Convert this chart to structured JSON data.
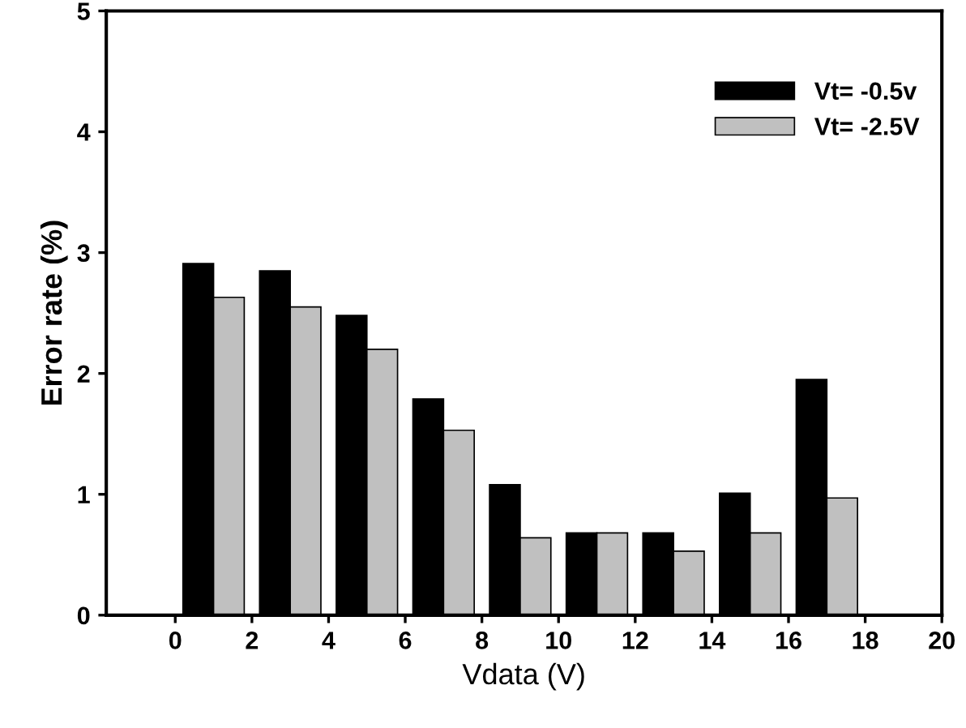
{
  "chart_data": {
    "type": "bar",
    "xlabel": "Vdata (V)",
    "ylabel": "Error rate (%)",
    "xlim": [
      -1.8,
      20
    ],
    "xticks": [
      0,
      2,
      4,
      6,
      8,
      10,
      12,
      14,
      16,
      18,
      20
    ],
    "ylim": [
      0,
      5
    ],
    "yticks": [
      0,
      1,
      2,
      3,
      4,
      5
    ],
    "series": [
      {
        "name": "Vt= -0.5v",
        "color": "#000000",
        "x": [
          0.6,
          2.6,
          4.6,
          6.6,
          8.6,
          10.6,
          12.6,
          14.6,
          16.6
        ],
        "values": [
          2.91,
          2.85,
          2.48,
          1.79,
          1.08,
          0.68,
          0.68,
          1.01,
          1.95
        ]
      },
      {
        "name": "Vt= -2.5V",
        "color": "#c0c0c0",
        "x": [
          1.4,
          3.4,
          5.4,
          7.4,
          9.4,
          11.4,
          13.4,
          15.4,
          17.4
        ],
        "values": [
          2.63,
          2.55,
          2.2,
          1.53,
          0.64,
          0.68,
          0.53,
          0.68,
          0.97
        ]
      }
    ],
    "legend": "top right",
    "grid": false
  }
}
